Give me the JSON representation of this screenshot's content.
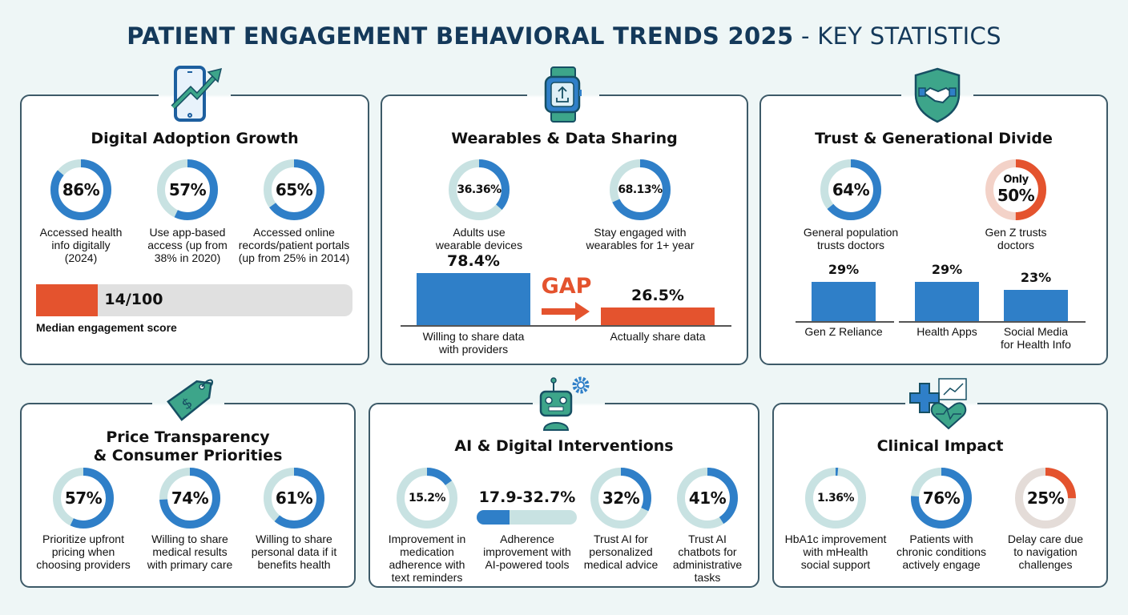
{
  "title": {
    "main": "PATIENT ENGAGEMENT BEHAVIORAL TRENDS 2025",
    "sub": "- KEY STATISTICS"
  },
  "colors": {
    "blue": "#2f7fc8",
    "teal_track": "#c8e2e2",
    "red": "#e4532e",
    "red_track": "#f3d2c8",
    "gray_track": "#e4dcd8",
    "navy": "#14395a",
    "icon_green": "#3da58a"
  },
  "digital": {
    "title": "Digital Adoption Growth",
    "icon": "smartphone-trend-up-icon",
    "donuts": [
      {
        "value": 86,
        "display": "86%",
        "label": "Accessed health\ninfo digitally\n(2024)"
      },
      {
        "value": 57,
        "display": "57%",
        "label": "Use app-based\naccess (up from\n38% in 2020)"
      },
      {
        "value": 65,
        "display": "65%",
        "label": "Accessed online\nrecords/patient portals\n(up from 25% in 2014)"
      }
    ],
    "score": {
      "value": 14,
      "max": 100,
      "text": "14/100",
      "label": "Median engagement score"
    }
  },
  "wearables": {
    "title": "Wearables & Data Sharing",
    "icon": "smartwatch-upload-icon",
    "donuts": [
      {
        "value": 36.36,
        "display": "36.36%",
        "label": "Adults use\nwearable devices"
      },
      {
        "value": 68.13,
        "display": "68.13%",
        "label": "Stay engaged with\nwearables for 1+ year"
      }
    ],
    "bars": [
      {
        "value": 78.4,
        "display": "78.4%",
        "label": "Willing to share data\nwith providers",
        "color": "#2f7fc8"
      },
      {
        "value": 26.5,
        "display": "26.5%",
        "label": "Actually share data",
        "color": "#e4532e"
      }
    ],
    "gap_label": "GAP"
  },
  "trust": {
    "title": "Trust & Generational Divide",
    "icon": "shield-handshake-icon",
    "donuts": [
      {
        "value": 64,
        "display": "64%",
        "label": "General population\ntrusts doctors"
      },
      {
        "value": 50,
        "prefix": "Only",
        "display": "50%",
        "label": "Gen Z trusts\ndoctors",
        "accent": "red"
      }
    ],
    "bars": [
      {
        "value": 29,
        "display": "29%",
        "label": "Gen Z Reliance"
      },
      {
        "value": 29,
        "display": "29%",
        "label": "Health Apps"
      },
      {
        "value": 23,
        "display": "23%",
        "label": "Social Media\nfor Health Info"
      }
    ]
  },
  "price": {
    "title": "Price Transparency\n& Consumer Priorities",
    "icon": "price-tag-dollar-icon",
    "donuts": [
      {
        "value": 57,
        "display": "57%",
        "label": "Prioritize upfront\npricing when\nchoosing providers"
      },
      {
        "value": 74,
        "display": "74%",
        "label": "Willing to share\nmedical results\nwith primary care"
      },
      {
        "value": 61,
        "display": "61%",
        "label": "Willing to share\npersonal data if it\nbenefits health"
      }
    ]
  },
  "ai": {
    "title": "AI & Digital Interventions",
    "icon": "robot-gear-icon",
    "donuts": [
      {
        "value": 15.2,
        "display": "15.2%",
        "label": "Improvement in\nmedication\nadherence with\ntext reminders"
      },
      {
        "value": 32,
        "display": "32%",
        "label": "Trust AI for\npersonalized\nmedical advice"
      },
      {
        "value": 41,
        "display": "41%",
        "label": "Trust AI\nchatbots for\nadministrative\ntasks"
      }
    ],
    "range": {
      "low": 17.9,
      "high": 32.7,
      "display": "17.9-32.7%",
      "label": "Adherence\nimprovement with\nAI-powered tools"
    }
  },
  "clinical": {
    "title": "Clinical Impact",
    "icon": "medical-cross-heart-icon",
    "donuts": [
      {
        "value": 1.36,
        "display": "1.36%",
        "label": "HbA1c improvement\nwith mHealth\nsocial support"
      },
      {
        "value": 76,
        "display": "76%",
        "label": "Patients with\nchronic conditions\nactively engage"
      },
      {
        "value": 25,
        "display": "25%",
        "label": "Delay care due\nto navigation\nchallenges",
        "accent": "red-gray"
      }
    ]
  }
}
